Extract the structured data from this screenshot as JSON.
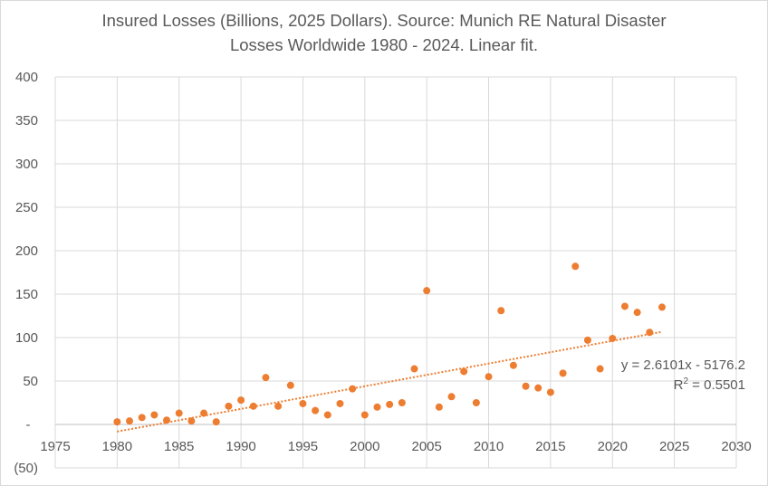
{
  "chart_data": {
    "type": "scatter",
    "title_lines": [
      "Insured Losses (Billions, 2025 Dollars). Source: Munich RE Natural Disaster",
      "Losses Worldwide 1980 - 2024. Linear fit."
    ],
    "xlabel": "",
    "ylabel": "",
    "xlim": [
      1975,
      2030
    ],
    "ylim": [
      -50,
      400
    ],
    "x_ticks": [
      1975,
      1980,
      1985,
      1990,
      1995,
      2000,
      2005,
      2010,
      2015,
      2020,
      2025,
      2030
    ],
    "y_ticks": [
      {
        "v": 400,
        "label": "400"
      },
      {
        "v": 350,
        "label": "350"
      },
      {
        "v": 300,
        "label": "300"
      },
      {
        "v": 250,
        "label": "250"
      },
      {
        "v": 200,
        "label": "200"
      },
      {
        "v": 150,
        "label": "150"
      },
      {
        "v": 100,
        "label": "100"
      },
      {
        "v": 50,
        "label": "50"
      },
      {
        "v": 0,
        "label": "-"
      },
      {
        "v": -50,
        "label": "(50)"
      }
    ],
    "grid": true,
    "series": [
      {
        "name": "Insured Losses",
        "color": "#ed7d31",
        "x": [
          1980,
          1981,
          1982,
          1983,
          1984,
          1985,
          1986,
          1987,
          1988,
          1989,
          1990,
          1991,
          1992,
          1993,
          1994,
          1995,
          1996,
          1997,
          1998,
          1999,
          2000,
          2001,
          2002,
          2003,
          2004,
          2005,
          2006,
          2007,
          2008,
          2009,
          2010,
          2011,
          2012,
          2013,
          2014,
          2015,
          2016,
          2017,
          2018,
          2019,
          2020,
          2021,
          2022,
          2023,
          2024
        ],
        "y": [
          3,
          4,
          8,
          11,
          5,
          13,
          4,
          13,
          3,
          21,
          28,
          21,
          54,
          21,
          45,
          24,
          16,
          11,
          24,
          41,
          11,
          20,
          23,
          25,
          64,
          154,
          20,
          32,
          61,
          25,
          55,
          131,
          68,
          44,
          42,
          37,
          59,
          182,
          97,
          64,
          99,
          136,
          129,
          106,
          135
        ]
      }
    ],
    "trendline": {
      "type": "linear",
      "slope": 2.6101,
      "intercept": -5176.2,
      "x_range": [
        1980,
        2024
      ],
      "equation": "y = 2.6101x - 5176.2",
      "r2_label": "R",
      "r2_sup": "2",
      "r2_value": " = 0.5501"
    }
  }
}
